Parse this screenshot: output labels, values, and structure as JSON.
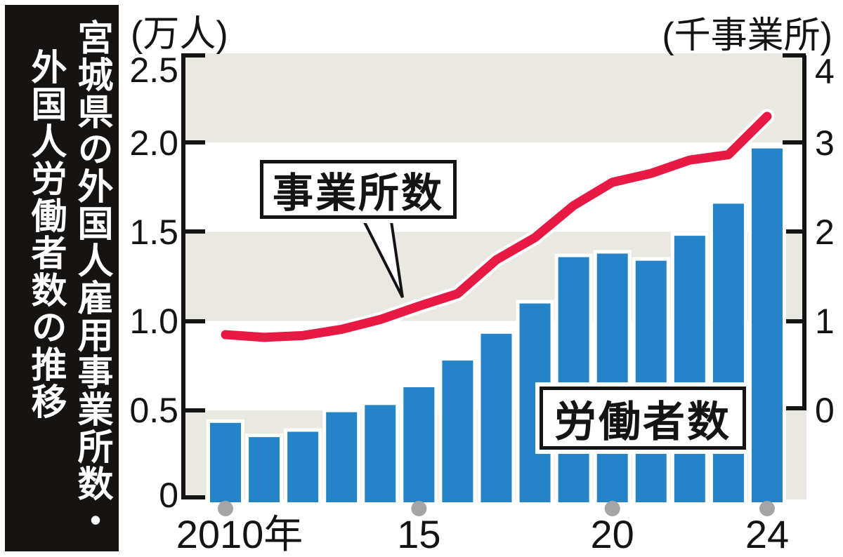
{
  "title": {
    "full": "宮城県の外国人雇用事業所数・外国人労働者数の推移",
    "line1": "宮城県の外国人雇用事業所数・",
    "line2": "外国人労働者数の推移"
  },
  "colors": {
    "bar_blue": "#2484c7",
    "line_red": "#e81a43",
    "band_gray": "#e9e9e1",
    "dot_gray": "#a5a5a5",
    "axis_black": "#141414",
    "sidebar_black": "#161413",
    "halo_white": "#ffffff"
  },
  "chart_data": {
    "type": "bar",
    "subtype": "bar+line combo, dual axis",
    "categories": [
      2010,
      2011,
      2012,
      2013,
      2014,
      2015,
      2016,
      2017,
      2018,
      2019,
      2020,
      2021,
      2022,
      2023,
      2024
    ],
    "series": [
      {
        "name": "労働者数",
        "type": "bar",
        "axis": "left",
        "unit": "万人",
        "values": [
          0.43,
          0.35,
          0.38,
          0.49,
          0.53,
          0.63,
          0.78,
          0.93,
          1.1,
          1.36,
          1.38,
          1.34,
          1.48,
          1.66,
          1.97
        ]
      },
      {
        "name": "事業所数",
        "type": "line",
        "axis": "right",
        "unit": "千事業所",
        "values": [
          0.85,
          0.82,
          0.84,
          0.91,
          1.02,
          1.17,
          1.31,
          1.69,
          1.94,
          2.3,
          2.56,
          2.66,
          2.81,
          2.87,
          3.3
        ]
      }
    ],
    "left_axis": {
      "title": "(万人)",
      "range": [
        0,
        2.5
      ],
      "ticks": [
        {
          "label": "2.5",
          "value": 2.5
        },
        {
          "label": "2.0",
          "value": 2.0
        },
        {
          "label": "1.5",
          "value": 1.5
        },
        {
          "label": "1.0",
          "value": 1.0
        },
        {
          "label": "0.5",
          "value": 0.5
        },
        {
          "label": "0",
          "value": 0
        }
      ]
    },
    "right_axis": {
      "title": "(千事業所)",
      "range": [
        0,
        4
      ],
      "ticks": [
        {
          "label": "4",
          "value": 4
        },
        {
          "label": "3",
          "value": 3
        },
        {
          "label": "2",
          "value": 2
        },
        {
          "label": "1",
          "value": 1
        },
        {
          "label": "0",
          "value": 0
        }
      ]
    },
    "x_axis": {
      "labels": [
        {
          "text": "2010年",
          "year": 2010
        },
        {
          "text": "15",
          "year": 2015
        },
        {
          "text": "20",
          "year": 2020
        },
        {
          "text": "24",
          "year": 2024
        }
      ],
      "marked_years": [
        2010,
        2015,
        2020,
        2024
      ]
    },
    "grid": "alternating horizontal gray bands",
    "legend_position": "callout boxes inside plot"
  }
}
